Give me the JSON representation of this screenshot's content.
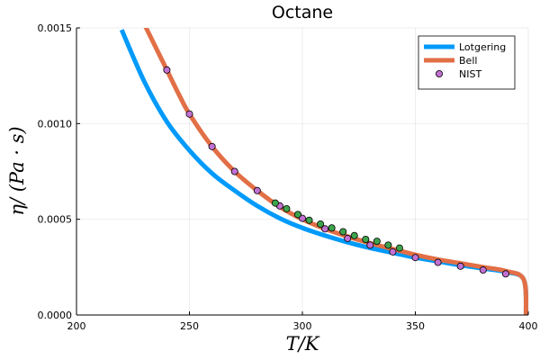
{
  "chart_data": {
    "type": "line",
    "title": "Octane",
    "xlabel": "T/K",
    "ylabel": "η/ (Pa · s)",
    "xlim": [
      200,
      400
    ],
    "ylim": [
      0,
      0.0015
    ],
    "x_ticks": [
      200,
      250,
      300,
      350,
      400
    ],
    "x_tick_labels": [
      "200",
      "250",
      "300",
      "350",
      "400"
    ],
    "y_ticks": [
      0,
      0.0005,
      0.001,
      0.0015
    ],
    "y_tick_labels": [
      "0.0000",
      "0.0005",
      "0.0010",
      "0.0015"
    ],
    "grid": true,
    "legend_position": "top-right",
    "series": [
      {
        "name": "Lotgering",
        "kind": "line",
        "color": "#009AFA",
        "x": [
          220,
          230,
          240,
          250,
          260,
          270,
          280,
          290,
          300,
          310,
          320,
          330,
          340,
          350,
          360,
          370,
          380,
          390,
          398,
          399
        ],
        "y": [
          0.00149,
          0.00122,
          0.00101,
          0.00086,
          0.00074,
          0.00065,
          0.00057,
          0.000505,
          0.000455,
          0.000415,
          0.00038,
          0.00035,
          0.000325,
          0.0003,
          0.00028,
          0.00026,
          0.000243,
          0.000225,
          0.000185,
          0
        ]
      },
      {
        "name": "Bell",
        "kind": "line",
        "color": "#E26F46",
        "x": [
          230,
          235,
          240,
          245,
          250,
          260,
          270,
          280,
          290,
          300,
          310,
          320,
          330,
          340,
          350,
          360,
          370,
          380,
          390,
          398,
          399
        ],
        "y": [
          0.00152,
          0.0014,
          0.00128,
          0.00116,
          0.00105,
          0.00088,
          0.00075,
          0.00065,
          0.000565,
          0.0005,
          0.00045,
          0.00041,
          0.000375,
          0.000345,
          0.000315,
          0.00029,
          0.00027,
          0.00025,
          0.00023,
          0.000185,
          0
        ]
      },
      {
        "name": "NIST",
        "kind": "scatter",
        "color": "#C271D2",
        "x": [
          240,
          250,
          260,
          270,
          280,
          290,
          300,
          310,
          320,
          330,
          340,
          350,
          360,
          370,
          380,
          390
        ],
        "y": [
          0.00128,
          0.00105,
          0.00088,
          0.00075,
          0.00065,
          0.00057,
          0.000505,
          0.00045,
          0.0004,
          0.000365,
          0.00033,
          0.0003,
          0.000275,
          0.000255,
          0.000235,
          0.000215
        ]
      },
      {
        "kind": "scatter",
        "color": "#3DA44D",
        "x": [
          288,
          293,
          298,
          303,
          308,
          313,
          318,
          323,
          328,
          333,
          338,
          343
        ],
        "y": [
          0.000585,
          0.000555,
          0.000525,
          0.000495,
          0.000475,
          0.000455,
          0.000435,
          0.000415,
          0.000395,
          0.000385,
          0.000365,
          0.00035
        ]
      }
    ]
  }
}
